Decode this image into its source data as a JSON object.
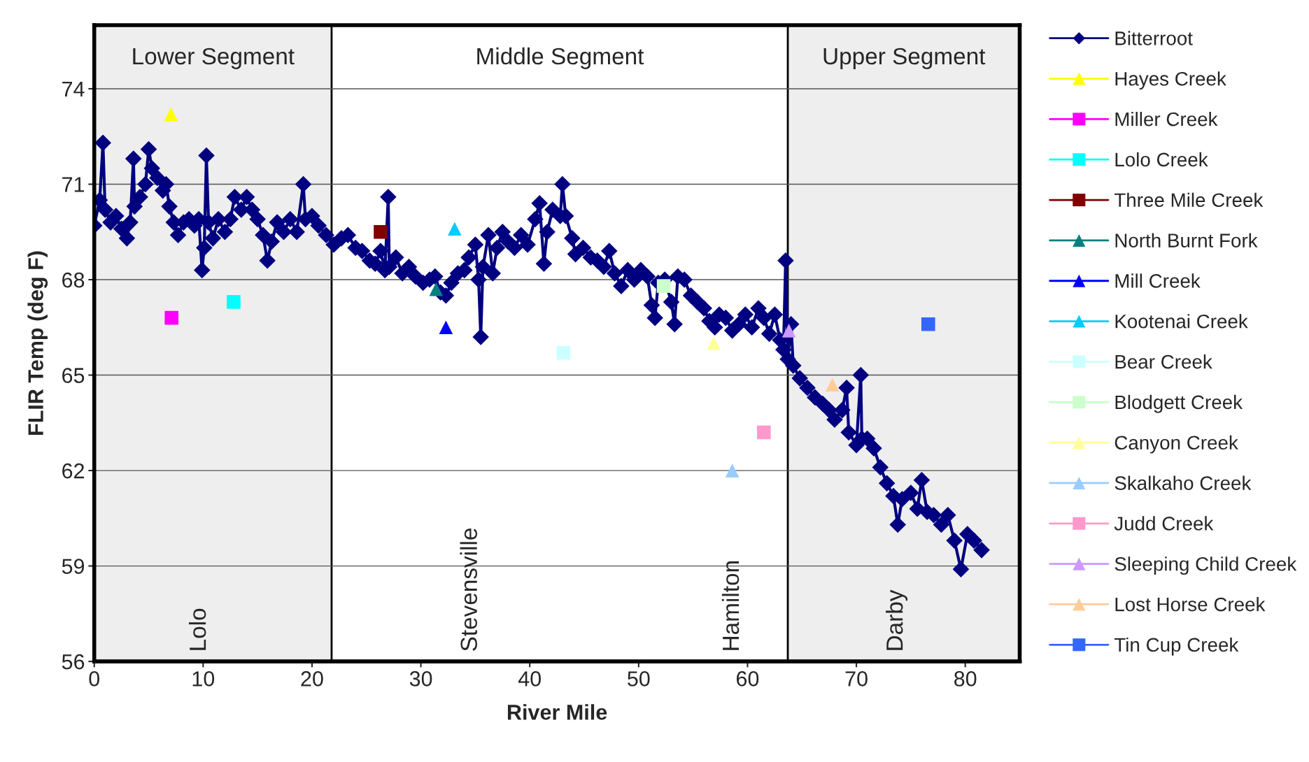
{
  "chart_data": {
    "type": "line",
    "xlabel": "River Mile",
    "ylabel": "FLIR Temp (deg F)",
    "xlim": [
      0,
      85
    ],
    "xticks": [
      0,
      10,
      20,
      30,
      40,
      50,
      60,
      70,
      80
    ],
    "ylim": [
      56,
      76
    ],
    "yticks": [
      56,
      59,
      62,
      65,
      68,
      71,
      74
    ],
    "grid": "y",
    "legend": "right",
    "bands": [
      {
        "axis": "x",
        "from": 0,
        "to": 21.8,
        "label": "Lower Segment",
        "color": "#eeeeee"
      },
      {
        "axis": "x",
        "from": 63.7,
        "to": 85,
        "label": "Upper Segment",
        "color": "#eeeeee"
      }
    ],
    "ref_lines": [
      {
        "axis": "x",
        "value": 21.8,
        "color": "#000000"
      },
      {
        "axis": "x",
        "value": 63.7,
        "color": "#000000"
      }
    ],
    "annotations": [
      "Middle Segment",
      "Lolo",
      "Stevensville",
      "Hamilton",
      "Darby"
    ],
    "series": [
      {
        "name": "Bitterroot",
        "marker": "diamond",
        "color": "#000080",
        "x": [
          0,
          0.5,
          0.8,
          1.0,
          1.5,
          2.0,
          2.5,
          3.0,
          3.3,
          3.6,
          3.7,
          4.2,
          4.7,
          5.0,
          5.3,
          5.8,
          6.3,
          6.6,
          6.9,
          7.3,
          7.7,
          8.2,
          8.7,
          9.2,
          9.6,
          9.9,
          10.1,
          10.3,
          10.5,
          10.9,
          11.4,
          12.0,
          12.5,
          12.9,
          13.5,
          14.0,
          14.5,
          15.0,
          15.5,
          15.9,
          16.3,
          16.8,
          17.4,
          18.0,
          18.6,
          19.2,
          19.4,
          20.0,
          20.6,
          21.3,
          22.0,
          22.7,
          23.3,
          24.0,
          24.6,
          25.3,
          25.8,
          26.3,
          26.7,
          27.0,
          27.1,
          27.7,
          28.3,
          28.9,
          29.5,
          30.2,
          30.8,
          31.3,
          31.8,
          32.3,
          32.8,
          33.4,
          34.0,
          34.4,
          35.0,
          35.3,
          35.5,
          35.7,
          36.2,
          36.6,
          37.0,
          37.5,
          38.0,
          38.6,
          39.2,
          39.8,
          40.5,
          40.9,
          41.3,
          41.6,
          42.1,
          42.8,
          43.0,
          43.3,
          43.9,
          44.2,
          44.9,
          45.6,
          46.2,
          46.8,
          47.3,
          47.8,
          48.4,
          49.0,
          49.6,
          50.2,
          50.8,
          51.2,
          51.5,
          51.8,
          52.4,
          53.0,
          53.3,
          53.6,
          54.2,
          54.8,
          55.4,
          56.0,
          56.5,
          57.0,
          57.4,
          58.0,
          58.6,
          59.2,
          59.8,
          60.4,
          61.0,
          61.5,
          62.0,
          62.5,
          63.0,
          63.3,
          63.5,
          63.7,
          64.0,
          64.2,
          64.8,
          65.5,
          66.2,
          66.9,
          67.5,
          68.0,
          68.7,
          69.1,
          69.3,
          70.0,
          70.4,
          70.5,
          71.0,
          71.6,
          72.2,
          72.8,
          73.4,
          73.8,
          74.2,
          75.0,
          75.6,
          76.0,
          76.5,
          77.1,
          77.8,
          78.4,
          79.0,
          79.6,
          80.2,
          80.8,
          81.5
        ],
        "values": [
          69.7,
          70.5,
          72.3,
          70.2,
          69.8,
          70.0,
          69.6,
          69.3,
          69.8,
          71.8,
          70.3,
          70.6,
          71.0,
          72.1,
          71.5,
          71.2,
          70.8,
          71.0,
          70.3,
          69.8,
          69.4,
          69.8,
          69.9,
          69.7,
          69.9,
          68.3,
          69.0,
          71.9,
          69.8,
          69.3,
          69.9,
          69.5,
          69.9,
          70.6,
          70.2,
          70.6,
          70.2,
          69.9,
          69.4,
          68.6,
          69.2,
          69.8,
          69.5,
          69.9,
          69.5,
          71.0,
          69.9,
          70.0,
          69.7,
          69.4,
          69.1,
          69.3,
          69.4,
          69.0,
          68.9,
          68.6,
          68.5,
          68.9,
          68.3,
          70.6,
          68.4,
          68.7,
          68.2,
          68.4,
          68.1,
          67.9,
          68.0,
          68.1,
          67.6,
          67.5,
          67.9,
          68.2,
          68.3,
          68.7,
          69.1,
          68.0,
          66.2,
          68.4,
          69.4,
          68.2,
          69.0,
          69.5,
          69.2,
          69.0,
          69.4,
          69.1,
          69.9,
          70.4,
          68.5,
          69.5,
          70.2,
          70.0,
          71.0,
          70.0,
          69.3,
          68.8,
          69.0,
          68.7,
          68.6,
          68.4,
          68.9,
          68.2,
          67.8,
          68.3,
          68.0,
          68.3,
          68.1,
          67.2,
          66.8,
          67.9,
          68.0,
          67.3,
          66.6,
          68.1,
          68.0,
          67.5,
          67.3,
          67.1,
          66.7,
          66.5,
          66.9,
          66.8,
          66.4,
          66.6,
          66.9,
          66.5,
          67.1,
          66.8,
          66.3,
          66.9,
          66.1,
          65.8,
          68.6,
          65.5,
          66.6,
          65.3,
          64.9,
          64.6,
          64.3,
          64.1,
          63.9,
          63.6,
          63.9,
          64.6,
          63.2,
          62.8,
          65.0,
          63.0,
          63.0,
          62.7,
          62.1,
          61.6,
          61.2,
          60.3,
          61.1,
          61.3,
          60.8,
          61.7,
          60.7,
          60.6,
          60.3,
          60.6,
          59.8,
          58.9,
          60.0,
          59.8,
          59.5
        ]
      },
      {
        "name": "Hayes Creek",
        "type": "scatter",
        "marker": "triangle",
        "color": "#ffff00",
        "x": [
          7.05
        ],
        "values": [
          73.2
        ]
      },
      {
        "name": "Miller Creek",
        "type": "scatter",
        "marker": "square",
        "color": "#ff00ff",
        "x": [
          7.1
        ],
        "values": [
          66.8
        ]
      },
      {
        "name": "Lolo Creek",
        "type": "scatter",
        "marker": "square",
        "color": "#00ffff",
        "x": [
          12.8
        ],
        "values": [
          67.3
        ]
      },
      {
        "name": "Three Mile Creek",
        "type": "scatter",
        "marker": "square",
        "color": "#800000",
        "x": [
          26.3
        ],
        "values": [
          69.5
        ]
      },
      {
        "name": "North Burnt Fork",
        "type": "scatter",
        "marker": "triangle",
        "color": "#008080",
        "x": [
          31.4
        ],
        "values": [
          67.7
        ]
      },
      {
        "name": "Mill Creek",
        "type": "scatter",
        "marker": "triangle",
        "color": "#0000ff",
        "x": [
          32.3
        ],
        "values": [
          66.5
        ]
      },
      {
        "name": "Kootenai Creek",
        "type": "scatter",
        "marker": "triangle",
        "color": "#00ccff",
        "x": [
          33.1
        ],
        "values": [
          69.6
        ]
      },
      {
        "name": "Bear Creek",
        "type": "scatter",
        "marker": "square",
        "color": "#ccffff",
        "x": [
          43.1
        ],
        "values": [
          65.7
        ]
      },
      {
        "name": "Blodgett Creek",
        "type": "scatter",
        "marker": "square",
        "color": "#ccffcc",
        "x": [
          52.3
        ],
        "values": [
          67.8
        ]
      },
      {
        "name": "Canyon Creek",
        "type": "scatter",
        "marker": "triangle",
        "color": "#ffff99",
        "x": [
          56.9
        ],
        "values": [
          66.0
        ]
      },
      {
        "name": "Skalkaho Creek",
        "type": "scatter",
        "marker": "triangle",
        "color": "#99ccff",
        "x": [
          58.6
        ],
        "values": [
          62.0
        ]
      },
      {
        "name": "Judd Creek",
        "type": "scatter",
        "marker": "square",
        "color": "#ff99cc",
        "x": [
          61.5
        ],
        "values": [
          63.2
        ]
      },
      {
        "name": "Sleeping Child Creek",
        "type": "scatter",
        "marker": "triangle",
        "color": "#cc99ff",
        "x": [
          63.8
        ],
        "values": [
          66.4
        ]
      },
      {
        "name": "Lost Horse Creek",
        "type": "scatter",
        "marker": "triangle",
        "color": "#ffcc99",
        "x": [
          67.8
        ],
        "values": [
          64.7
        ]
      },
      {
        "name": "Tin Cup Creek",
        "type": "scatter",
        "marker": "square",
        "color": "#3366ff",
        "x": [
          76.6
        ],
        "values": [
          66.6
        ]
      }
    ]
  }
}
